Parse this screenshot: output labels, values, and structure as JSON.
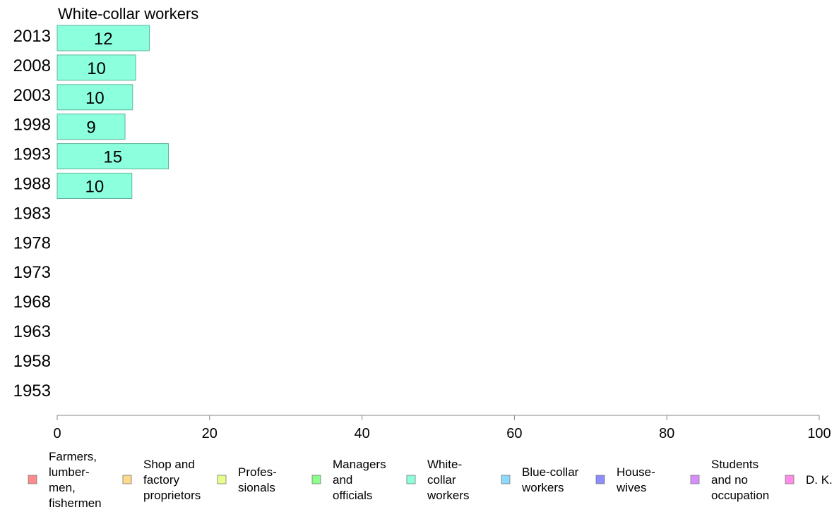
{
  "chart_data": {
    "type": "bar",
    "orientation": "horizontal",
    "title": "White-collar workers",
    "categories": [
      "2013",
      "2008",
      "2003",
      "1998",
      "1993",
      "1988",
      "1983",
      "1978",
      "1973",
      "1968",
      "1963",
      "1958",
      "1953"
    ],
    "values": [
      12.1,
      10.3,
      9.9,
      8.9,
      14.6,
      9.8,
      null,
      null,
      null,
      null,
      null,
      null,
      null
    ],
    "value_labels": [
      "12",
      "10",
      "10",
      "9",
      "15",
      "10",
      "",
      "",
      "",
      "",
      "",
      "",
      ""
    ],
    "series_color": "#8CFFDD",
    "xlim": [
      0,
      100
    ],
    "xticks": [
      "0",
      "20",
      "40",
      "60",
      "80",
      "100"
    ],
    "legend_position": "bottom",
    "legend": [
      {
        "lines": [
          "Farmers,",
          "lumber-",
          "men,",
          "fishermen"
        ],
        "color": "#FF8C8C"
      },
      {
        "lines": [
          "Shop and",
          "factory",
          "proprietors"
        ],
        "color": "#FFD98C"
      },
      {
        "lines": [
          "Profes-",
          "sionals"
        ],
        "color": "#E6FF8C"
      },
      {
        "lines": [
          "Managers",
          "and",
          "officials"
        ],
        "color": "#8CFF8C"
      },
      {
        "lines": [
          "White-",
          "collar",
          "workers"
        ],
        "color": "#8CFFDD"
      },
      {
        "lines": [
          "Blue-collar",
          "workers"
        ],
        "color": "#8CD9FF"
      },
      {
        "lines": [
          "House-",
          "wives"
        ],
        "color": "#8C8CFF"
      },
      {
        "lines": [
          "Students",
          "and no",
          "occupation"
        ],
        "color": "#D98CFF"
      },
      {
        "lines": [
          "D. K."
        ],
        "color": "#FF8CE6"
      }
    ]
  }
}
